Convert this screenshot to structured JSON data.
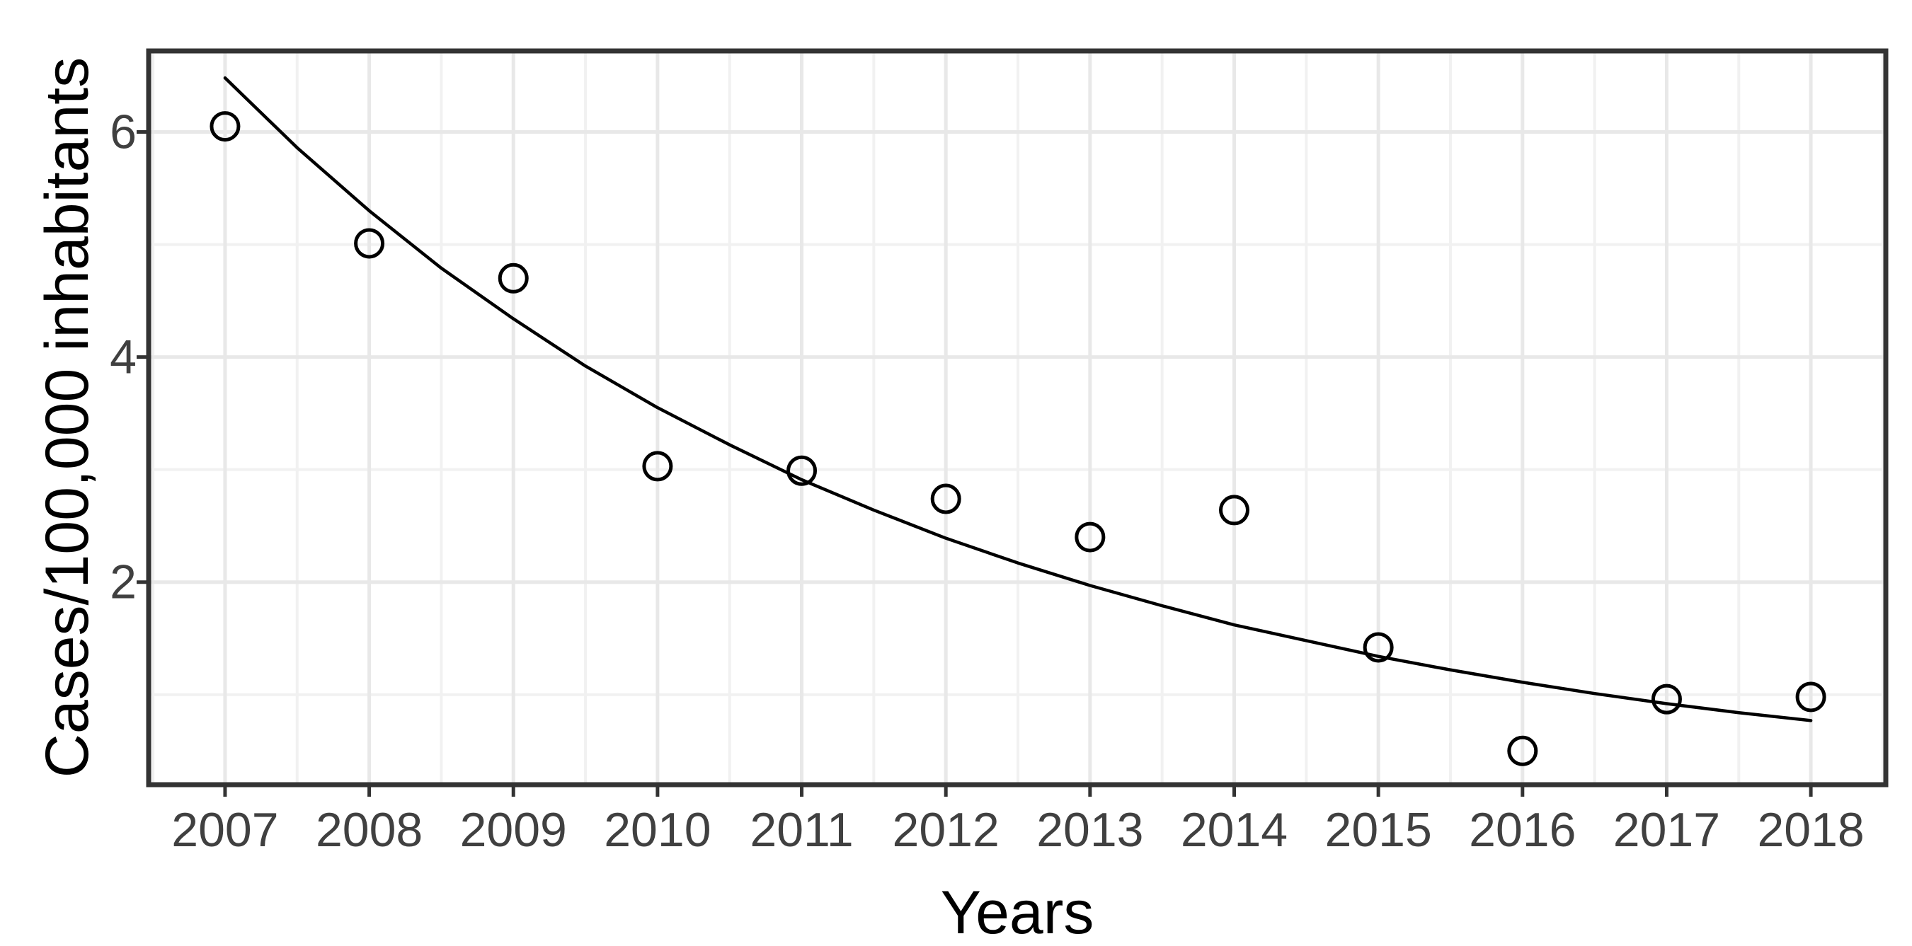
{
  "chart_data": {
    "type": "scatter",
    "title": "",
    "xlabel": "Years",
    "ylabel": "Cases/100,000 inhabitants",
    "legend": "none",
    "grid": "on",
    "marker": "open-circle",
    "xlim": [
      2006.47,
      2018.52
    ],
    "ylim": [
      0.2,
      6.72
    ],
    "x_ticks": [
      2007,
      2008,
      2009,
      2010,
      2011,
      2012,
      2013,
      2014,
      2015,
      2016,
      2017,
      2018
    ],
    "x_tick_labels": [
      "2007",
      "2008",
      "2009",
      "2010",
      "2011",
      "2012",
      "2013",
      "2014",
      "2015",
      "2016",
      "2017",
      "2018"
    ],
    "y_ticks": [
      2,
      4,
      6
    ],
    "y_tick_labels": [
      "2",
      "4",
      "6"
    ],
    "x_minor": [
      2006.5,
      2007.5,
      2008.5,
      2009.5,
      2010.5,
      2011.5,
      2012.5,
      2013.5,
      2014.5,
      2015.5,
      2016.5,
      2017.5,
      2018.5
    ],
    "y_minor": [
      1,
      3,
      5
    ],
    "points": [
      {
        "year": 2007,
        "value": 6.05
      },
      {
        "year": 2008,
        "value": 5.01
      },
      {
        "year": 2009,
        "value": 4.7
      },
      {
        "year": 2010,
        "value": 3.03
      },
      {
        "year": 2011,
        "value": 2.99
      },
      {
        "year": 2012,
        "value": 2.74
      },
      {
        "year": 2013,
        "value": 2.4
      },
      {
        "year": 2014,
        "value": 2.64
      },
      {
        "year": 2015,
        "value": 1.42
      },
      {
        "year": 2016,
        "value": 0.5
      },
      {
        "year": 2017,
        "value": 0.96
      },
      {
        "year": 2018,
        "value": 0.98
      }
    ],
    "fit_curve": {
      "description": "exponential decay trend line from 2007 to 2018",
      "x": [
        2007,
        2007.5,
        2008,
        2008.5,
        2009,
        2009.5,
        2010,
        2010.5,
        2011,
        2011.5,
        2012,
        2012.5,
        2013,
        2013.5,
        2014,
        2014.5,
        2015,
        2015.5,
        2016,
        2016.5,
        2017,
        2017.5,
        2018
      ],
      "y": [
        6.48,
        5.86,
        5.3,
        4.79,
        4.34,
        3.92,
        3.55,
        3.22,
        2.91,
        2.64,
        2.39,
        2.17,
        1.97,
        1.79,
        1.62,
        1.48,
        1.34,
        1.22,
        1.11,
        1.01,
        0.92,
        0.84,
        0.77
      ]
    },
    "colors": {
      "background": "#ffffff",
      "panel_border": "#333333",
      "grid_major": "#e8e8e8",
      "grid_minor": "#f1f1f1",
      "tick_mark": "#333333",
      "tick_text": "#404040",
      "axis_title_text": "#000000",
      "point_stroke": "#000000",
      "curve_stroke": "#000000"
    }
  }
}
